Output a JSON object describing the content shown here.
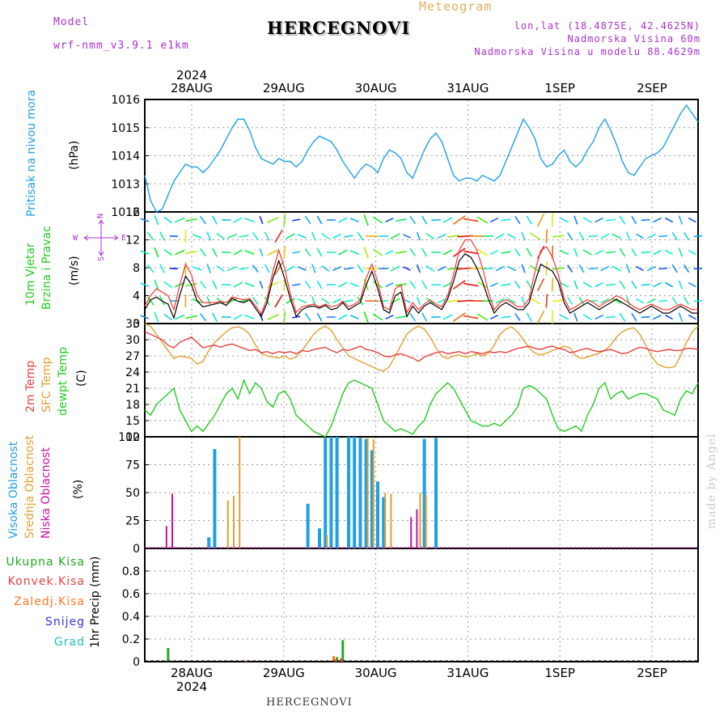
{
  "header": {
    "model_label": "Model",
    "model_value": "wrf-nmm_v3.9.1 e1km",
    "meteogram_label": "Meteogram",
    "station": "HERCEGNOVI",
    "coords": "lon,lat (18.4875E, 42.4625N)",
    "altitude": "Nadmorska Visina 60m",
    "model_altitude": "Nadmorska Visina u modelu 88.4629m",
    "footer_station": "HERCEGNOVI",
    "watermark": "made by Angel"
  },
  "colors": {
    "pressure": "#1ea0e6",
    "wind_label": "#22cc22",
    "wind_speed": "#000000",
    "gust": "#ff3333",
    "temp_2m": "#e84040",
    "temp_sfc": "#e0a030",
    "dewpoint": "#22cc22",
    "cloud_high": "#1ea0e6",
    "cloud_mid": "#e0a030",
    "cloud_low": "#cc1199",
    "precip_total": "#22aa22",
    "precip_conv": "#e84040",
    "precip_frozen": "#ff7722",
    "snow": "#3333dd",
    "hail": "#22bbbb",
    "compass": "#aa33cc"
  },
  "panel_labels": {
    "pressure": {
      "name": "Pritisak na nivou mora",
      "unit": "(hPa)"
    },
    "wind": {
      "name1": "10m Vjetar",
      "name2": "Brzina i Pravac",
      "unit": "(m/s)"
    },
    "compass": {
      "n": "N",
      "s": "S",
      "w": "W",
      "e": "E"
    },
    "temp": {
      "t2m": "2m Temp",
      "sfc": "SFC Temp",
      "dew": "dewpt Temp",
      "unit": "(C)"
    },
    "cloud": {
      "high": "Visoka Oblacnost",
      "mid": "Srednja Oblacnost",
      "low": "Niska Oblacnost",
      "unit": "(%)"
    },
    "precip": {
      "total": "Ukupna Kisa",
      "conv": "Konvek.Kisa",
      "frozen": "Zaledj.Kisa",
      "snow": "Snijeg",
      "hail": "Grad",
      "unit": "1hr Precip (mm)"
    }
  },
  "chart_data": [
    {
      "type": "line",
      "name": "pressure",
      "x_labels": [
        "28AUG",
        "29AUG",
        "30AUG",
        "31AUG",
        "1SEP",
        "2SEP"
      ],
      "year": "2024",
      "ylim": [
        1012,
        1016
      ],
      "yticks": [
        "1012",
        "1013",
        "1014",
        "1015",
        "1016"
      ],
      "grid": true,
      "series": [
        {
          "values": [
            1013.3,
            1012.4,
            1012.0,
            1012.1,
            1012.6,
            1013.1,
            1013.4,
            1013.7,
            1013.6,
            1013.6,
            1013.4,
            1013.6,
            1013.9,
            1014.2,
            1014.6,
            1015.0,
            1015.3,
            1015.3,
            1014.9,
            1014.3,
            1013.9,
            1013.8,
            1013.7,
            1013.9,
            1013.8,
            1013.8,
            1013.6,
            1013.8,
            1014.2,
            1014.5,
            1014.7,
            1014.6,
            1014.5,
            1014.2,
            1013.8,
            1013.5,
            1013.2,
            1013.5,
            1013.7,
            1013.6,
            1013.4,
            1013.9,
            1014.2,
            1014.1,
            1013.9,
            1013.4,
            1013.2,
            1013.7,
            1014.2,
            1014.6,
            1014.8,
            1014.5,
            1013.9,
            1013.3,
            1013.1,
            1013.2,
            1013.2,
            1013.1,
            1013.3,
            1013.2,
            1013.1,
            1013.3,
            1013.8,
            1014.3,
            1014.8,
            1015.3,
            1015.0,
            1014.6,
            1013.9,
            1013.6,
            1013.7,
            1014.0,
            1014.2,
            1013.8,
            1013.6,
            1013.8,
            1014.2,
            1014.5,
            1015.0,
            1015.3,
            1014.9,
            1014.4,
            1013.8,
            1013.4,
            1013.3,
            1013.6,
            1013.9,
            1014.0,
            1014.1,
            1014.3,
            1014.7,
            1015.1,
            1015.5,
            1015.8,
            1015.5,
            1015.2
          ]
        }
      ]
    },
    {
      "type": "line",
      "name": "wind",
      "ylim": [
        0,
        16
      ],
      "yticks": [
        "0",
        "4",
        "8",
        "12",
        "16"
      ],
      "grid": true,
      "series": [
        {
          "name": "speed",
          "values": [
            2.0,
            3.4,
            3.8,
            3.2,
            2.8,
            0.8,
            4.0,
            6.8,
            5.6,
            3.2,
            2.4,
            2.6,
            2.8,
            3.0,
            2.6,
            3.6,
            3.2,
            3.0,
            3.4,
            2.2,
            1.0,
            3.0,
            6.5,
            9.0,
            6.5,
            3.5,
            1.0,
            2.0,
            2.4,
            2.5,
            2.2,
            2.6,
            2.0,
            2.2,
            3.0,
            2.0,
            2.5,
            3.0,
            5.5,
            7.5,
            5.0,
            2.0,
            1.5,
            4.0,
            4.5,
            1.0,
            2.5,
            1.5,
            2.5,
            3.0,
            2.5,
            2.0,
            3.5,
            6.0,
            9.0,
            10.0,
            9.5,
            8.0,
            6.0,
            3.5,
            1.5,
            2.5,
            3.0,
            2.5,
            2.0,
            2.0,
            3.0,
            6.0,
            8.5,
            8.0,
            7.5,
            6.0,
            3.0,
            1.5,
            2.0,
            2.5,
            3.0,
            2.5,
            2.0,
            2.5,
            3.0,
            3.5,
            3.0,
            2.5,
            2.0,
            1.5,
            2.0,
            2.5,
            2.0,
            1.5,
            1.5,
            2.0,
            2.5,
            2.0,
            1.5,
            1.5
          ]
        },
        {
          "name": "gust",
          "values": [
            2.5,
            4.0,
            5.0,
            4.5,
            4.0,
            2.0,
            5.5,
            8.5,
            7.0,
            4.0,
            3.0,
            3.0,
            3.0,
            3.2,
            3.0,
            3.8,
            3.6,
            3.4,
            3.6,
            2.6,
            1.4,
            3.6,
            7.5,
            10.5,
            8.0,
            4.2,
            1.6,
            2.4,
            2.6,
            2.8,
            2.4,
            2.8,
            2.4,
            2.6,
            3.2,
            2.4,
            2.8,
            3.4,
            6.5,
            8.5,
            6.0,
            2.4,
            2.0,
            5.0,
            5.5,
            1.6,
            3.0,
            2.0,
            2.8,
            3.4,
            2.8,
            2.4,
            4.0,
            7.0,
            10.5,
            12.0,
            12.0,
            10.5,
            8.0,
            4.5,
            2.0,
            3.0,
            3.4,
            3.0,
            2.4,
            2.4,
            3.6,
            7.5,
            10.5,
            11.0,
            9.5,
            7.0,
            3.6,
            2.0,
            2.4,
            3.0,
            3.4,
            3.0,
            2.4,
            3.0,
            3.4,
            4.0,
            3.6,
            3.0,
            2.4,
            2.0,
            2.4,
            2.8,
            2.4,
            2.0,
            2.0,
            2.4,
            2.8,
            2.4,
            2.0,
            2.0
          ]
        }
      ]
    },
    {
      "type": "line",
      "name": "temperature",
      "ylim": [
        12,
        33
      ],
      "yticks": [
        "12",
        "15",
        "18",
        "21",
        "24",
        "27",
        "30",
        "33"
      ],
      "grid": true,
      "series": [
        {
          "name": "t2m",
          "values": [
            31.5,
            31.0,
            30.5,
            30.0,
            29.0,
            28.5,
            29.5,
            30.0,
            30.5,
            29.5,
            28.5,
            28.8,
            29.0,
            28.6,
            29.0,
            29.2,
            28.8,
            28.4,
            28.0,
            28.2,
            27.6,
            27.8,
            27.4,
            27.8,
            27.6,
            27.8,
            27.4,
            28.0,
            27.8,
            28.2,
            28.4,
            28.6,
            28.0,
            27.6,
            28.2,
            28.0,
            28.4,
            28.8,
            28.2,
            28.0,
            27.6,
            27.0,
            26.8,
            27.2,
            27.4,
            27.0,
            26.6,
            26.0,
            26.8,
            27.2,
            27.6,
            27.8,
            27.4,
            27.6,
            27.8,
            27.4,
            27.8,
            27.6,
            27.4,
            27.8,
            27.6,
            27.8,
            27.6,
            28.0,
            28.4,
            28.6,
            28.8,
            28.4,
            28.2,
            28.6,
            28.8,
            28.4,
            28.2,
            27.6,
            27.8,
            28.2,
            28.4,
            28.0,
            27.8,
            28.0,
            28.2,
            27.8,
            27.4,
            27.6,
            28.2,
            28.6,
            28.4,
            28.0,
            27.8,
            28.0,
            28.2,
            28.0,
            28.0,
            28.4,
            28.4,
            28.2
          ]
        },
        {
          "name": "sfc",
          "values": [
            33.0,
            32.5,
            31.0,
            29.5,
            28.0,
            26.5,
            27.0,
            26.8,
            26.5,
            25.5,
            26.0,
            28.0,
            29.5,
            30.5,
            31.5,
            32.2,
            32.4,
            32.0,
            31.0,
            29.0,
            27.5,
            27.0,
            26.8,
            26.6,
            27.0,
            26.4,
            26.8,
            28.0,
            29.5,
            31.0,
            32.0,
            32.5,
            31.8,
            30.0,
            28.5,
            27.0,
            26.5,
            26.0,
            25.5,
            25.0,
            24.5,
            24.2,
            25.0,
            27.0,
            29.0,
            31.0,
            32.0,
            32.5,
            32.0,
            30.5,
            28.5,
            27.0,
            26.5,
            27.0,
            27.2,
            26.8,
            27.0,
            27.4,
            27.0,
            27.5,
            29.0,
            31.0,
            32.0,
            32.4,
            31.5,
            30.0,
            28.5,
            27.5,
            27.2,
            27.5,
            28.0,
            28.4,
            28.8,
            28.5,
            27.0,
            26.5,
            26.8,
            27.2,
            27.5,
            28.0,
            29.0,
            30.5,
            31.5,
            32.0,
            32.2,
            31.0,
            29.0,
            27.0,
            25.5,
            25.0,
            24.8,
            25.0,
            27.0,
            29.5,
            31.5,
            32.5
          ]
        },
        {
          "name": "dew",
          "values": [
            17.0,
            16.0,
            18.0,
            19.0,
            20.0,
            21.0,
            17.0,
            15.0,
            13.0,
            14.0,
            13.0,
            14.5,
            16.0,
            18.0,
            20.0,
            21.0,
            19.0,
            22.5,
            20.0,
            22.0,
            21.0,
            18.5,
            17.5,
            20.0,
            20.5,
            19.0,
            16.0,
            15.0,
            14.0,
            13.0,
            12.5,
            12.0,
            14.0,
            17.0,
            20.0,
            22.0,
            22.5,
            22.0,
            21.5,
            21.0,
            18.0,
            15.0,
            14.0,
            13.0,
            13.5,
            13.0,
            12.5,
            14.0,
            15.0,
            18.0,
            20.0,
            21.0,
            22.0,
            21.0,
            19.0,
            17.0,
            15.0,
            14.5,
            14.0,
            14.0,
            14.5,
            14.0,
            15.0,
            16.0,
            17.5,
            21.0,
            21.5,
            21.0,
            20.0,
            19.0,
            16.0,
            13.5,
            13.0,
            13.5,
            14.0,
            13.0,
            16.0,
            18.0,
            21.0,
            22.0,
            19.0,
            20.0,
            20.5,
            19.0,
            19.5,
            20.0,
            20.0,
            19.5,
            19.0,
            17.0,
            16.5,
            16.0,
            19.0,
            20.5,
            20.0,
            22.0
          ]
        }
      ]
    },
    {
      "type": "bar",
      "name": "cloud",
      "ylim": [
        0,
        100
      ],
      "yticks": [
        "0",
        "25",
        "50",
        "75",
        "100"
      ],
      "grid": true,
      "series": [
        {
          "name": "high",
          "bars": [
            [
              11,
              10
            ],
            [
              12,
              89
            ],
            [
              28,
              40
            ],
            [
              30,
              18
            ],
            [
              31,
              99
            ],
            [
              32,
              100
            ],
            [
              33,
              100
            ],
            [
              35,
              100
            ],
            [
              36,
              100
            ],
            [
              37,
              99
            ],
            [
              38,
              98
            ],
            [
              39,
              88
            ],
            [
              40,
              60
            ],
            [
              41,
              46
            ],
            [
              48,
              98
            ],
            [
              50,
              99
            ]
          ]
        },
        {
          "name": "mid",
          "bars": [
            [
              14,
              43
            ],
            [
              15,
              47
            ],
            [
              16,
              100
            ],
            [
              31,
              12
            ],
            [
              38,
              99
            ],
            [
              39,
              98
            ],
            [
              41,
              50
            ],
            [
              42,
              49
            ],
            [
              47,
              50
            ],
            [
              48,
              48
            ]
          ]
        },
        {
          "name": "low",
          "bars": [
            [
              4,
              20
            ],
            [
              5,
              49
            ],
            [
              46,
              28
            ],
            [
              47,
              35
            ]
          ]
        }
      ]
    },
    {
      "type": "bar",
      "name": "precipitation",
      "ylim": [
        0,
        1
      ],
      "yticks": [
        "0",
        "0.2",
        "0.4",
        "0.6",
        "0.8"
      ],
      "grid": true,
      "series": [
        {
          "name": "total",
          "bars": [
            [
              4,
              0.12
            ],
            [
              33,
              0.04
            ],
            [
              34,
              0.19
            ]
          ]
        },
        {
          "name": "conv",
          "bars": [
            [
              33,
              0.02
            ],
            [
              34,
              0.03
            ]
          ]
        },
        {
          "name": "frozen",
          "bars": [
            [
              18,
              0.01
            ],
            [
              33,
              0.05
            ]
          ]
        }
      ]
    }
  ]
}
